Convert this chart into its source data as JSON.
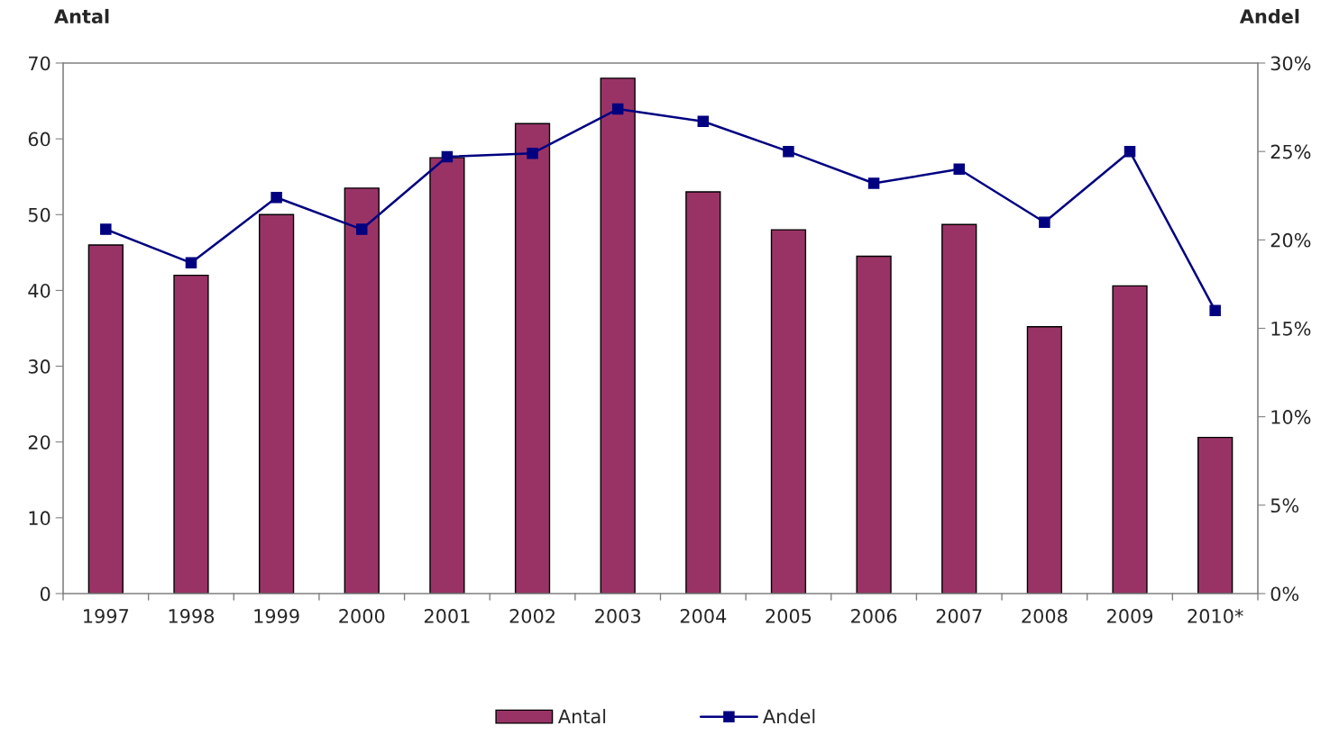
{
  "chart_data": {
    "type": "bar",
    "ylabel": "Antal",
    "y2label": "Andel",
    "categories": [
      "1997",
      "1998",
      "1999",
      "2000",
      "2001",
      "2002",
      "2003",
      "2004",
      "2005",
      "2006",
      "2007",
      "2008",
      "2009",
      "2010*"
    ],
    "series": [
      {
        "name": "Antal",
        "color": "#993366",
        "values": [
          46,
          42,
          50,
          53.5,
          57.5,
          62,
          68,
          53,
          48,
          44.5,
          48.7,
          35.2,
          40.6,
          20.6
        ]
      },
      {
        "name": "Andel",
        "type": "line",
        "axis": "y2",
        "color": "#000080",
        "marker": "square",
        "values": [
          20.6,
          18.7,
          22.4,
          20.6,
          24.7,
          24.9,
          27.4,
          26.7,
          25.0,
          23.2,
          24.0,
          21.0,
          25.0,
          16.0
        ]
      }
    ],
    "ylim": [
      0,
      70
    ],
    "yticks": [
      0,
      10,
      20,
      30,
      40,
      50,
      60,
      70
    ],
    "y2lim": [
      0,
      30
    ],
    "y2ticks": [
      {
        "value": 0,
        "label": "0%"
      },
      {
        "value": 5,
        "label": "5%"
      },
      {
        "value": 10,
        "label": "10%"
      },
      {
        "value": 15,
        "label": "15%"
      },
      {
        "value": 20,
        "label": "20%"
      },
      {
        "value": 25,
        "label": "25%"
      },
      {
        "value": 30,
        "label": "30%"
      }
    ],
    "grid": false,
    "legend": "bottom"
  }
}
